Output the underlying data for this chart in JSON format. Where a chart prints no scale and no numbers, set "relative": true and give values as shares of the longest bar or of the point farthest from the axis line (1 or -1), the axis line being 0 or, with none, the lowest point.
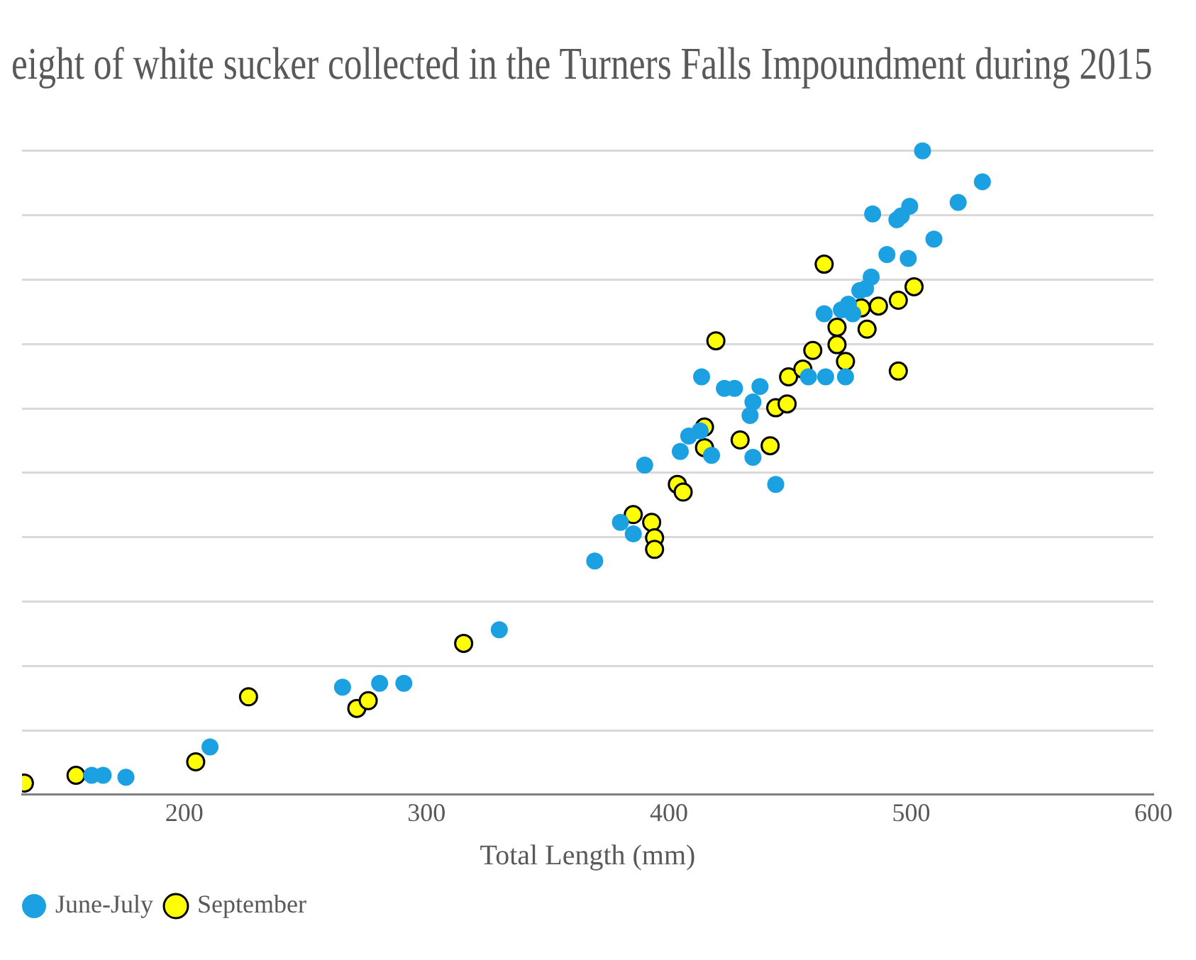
{
  "chart_data": {
    "type": "scatter",
    "title": "eight of white sucker collected in the Turners Falls Impoundment during 2015",
    "xlabel": "Total Length (mm)",
    "xlim": [
      133,
      600
    ],
    "xticks": [
      200,
      300,
      400,
      500,
      600
    ],
    "relative": true,
    "grid": "y",
    "legend": "bottom left",
    "marker": "circle",
    "series": [
      {
        "name": "June-July",
        "color": "#1ba1e2",
        "x": [
          161.8,
          166.5,
          175.9,
          210.6,
          265.3,
          280.6,
          290.6,
          330,
          369.4,
          380,
          385.3,
          390,
          404.7,
          408.2,
          412.9,
          417.6,
          413.5,
          422.9,
          427.1,
          433.5,
          434.7,
          434.7,
          437.6,
          444.1,
          464.1,
          471.2,
          472.9,
          475.9,
          478.8,
          481.2,
          483.5,
          484.1,
          490,
          494.1,
          495.9,
          498.8,
          499.4,
          504.7,
          509.4,
          519.4,
          529.4,
          457.6,
          464.7,
          474.1
        ],
        "values": [
          0.03,
          0.03,
          0.027,
          0.074,
          0.167,
          0.173,
          0.173,
          0.256,
          0.363,
          0.423,
          0.405,
          0.512,
          0.533,
          0.557,
          0.565,
          0.527,
          0.649,
          0.631,
          0.631,
          0.589,
          0.61,
          0.524,
          0.634,
          0.482,
          0.747,
          0.753,
          0.649,
          0.747,
          0.783,
          0.786,
          0.804,
          0.902,
          0.839,
          0.893,
          0.899,
          0.833,
          0.914,
          1.0,
          0.863,
          0.92,
          0.952,
          0.649,
          0.649,
          0.762
        ]
      },
      {
        "name": "September",
        "color": "#ffff00",
        "x": [
          134,
          155.3,
          204.7,
          226.5,
          271.2,
          275.9,
          315.3,
          385.3,
          392.9,
          394.1,
          394.1,
          403.5,
          405.9,
          419.4,
          414.7,
          414.7,
          429.4,
          441.8,
          444.1,
          448.8,
          449.4,
          455.3,
          459.4,
          464.1,
          469.4,
          469.4,
          472.9,
          479.4,
          481.8,
          486.5,
          494.7,
          494.7,
          501.2
        ],
        "values": [
          0.018,
          0.03,
          0.051,
          0.152,
          0.134,
          0.146,
          0.235,
          0.435,
          0.423,
          0.399,
          0.381,
          0.482,
          0.47,
          0.705,
          0.571,
          0.539,
          0.551,
          0.542,
          0.601,
          0.607,
          0.649,
          0.661,
          0.69,
          0.824,
          0.726,
          0.699,
          0.673,
          0.756,
          0.723,
          0.759,
          0.768,
          0.658,
          0.789
        ]
      }
    ]
  }
}
